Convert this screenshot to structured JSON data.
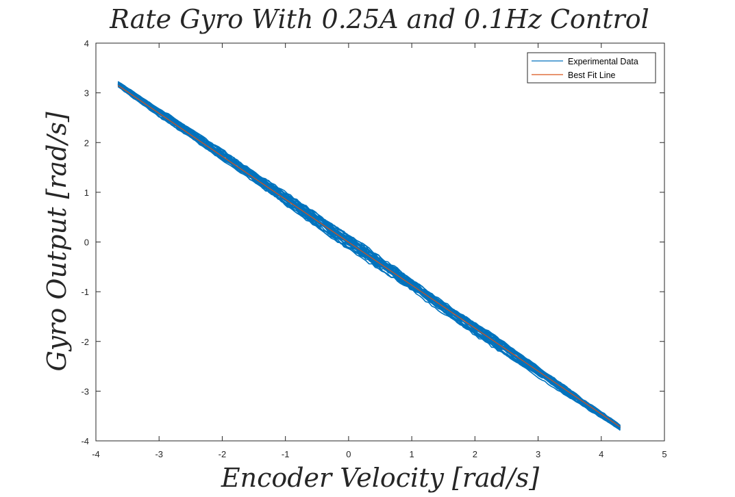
{
  "chart_data": {
    "type": "scatter",
    "title": "Rate Gyro With 0.25A and 0.1Hz Control",
    "xlabel": "Encoder Velocity [rad/s]",
    "ylabel": "Gyro Output [rad/s]",
    "xlim": [
      -4,
      5
    ],
    "ylim": [
      -4,
      4
    ],
    "xticks": [
      -4,
      -3,
      -2,
      -1,
      0,
      1,
      2,
      3,
      4,
      5
    ],
    "yticks": [
      -4,
      -3,
      -2,
      -1,
      0,
      1,
      2,
      3,
      4
    ],
    "xtick_labels": [
      "-4",
      "-3",
      "-2",
      "-1",
      "0",
      "1",
      "2",
      "3",
      "4",
      "5"
    ],
    "ytick_labels": [
      "-4",
      "-3",
      "-2",
      "-1",
      "0",
      "1",
      "2",
      "3",
      "4"
    ],
    "grid": false,
    "legend": {
      "placement": "top-right",
      "entries": [
        "Experimental Data",
        "Best Fit Line"
      ]
    },
    "series": [
      {
        "name": "Experimental Data",
        "color": "#0072BD",
        "x_range": [
          -3.65,
          4.3
        ],
        "trend": {
          "slope": -0.87,
          "intercept": 0.0
        },
        "approx_band_halfwidth": 0.1
      },
      {
        "name": "Best Fit Line",
        "color": "#D95319",
        "x": [
          -3.65,
          4.3
        ],
        "y": [
          3.15,
          -3.72
        ]
      }
    ]
  }
}
